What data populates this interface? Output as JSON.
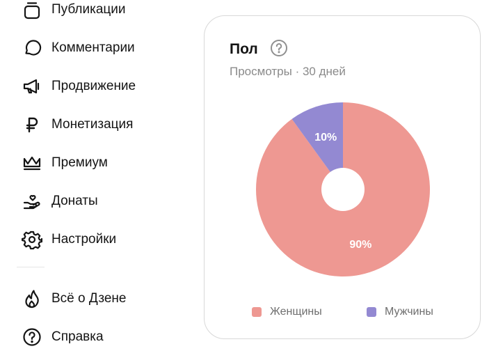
{
  "sidebar": {
    "items": [
      {
        "label": "Публикации",
        "icon": "publications-icon"
      },
      {
        "label": "Комментарии",
        "icon": "comment-icon"
      },
      {
        "label": "Продвижение",
        "icon": "megaphone-icon"
      },
      {
        "label": "Монетизация",
        "icon": "ruble-icon"
      },
      {
        "label": "Премиум",
        "icon": "crown-icon"
      },
      {
        "label": "Донаты",
        "icon": "donate-hand-icon"
      },
      {
        "label": "Настройки",
        "icon": "gear-icon"
      }
    ],
    "bottom_items": [
      {
        "label": "Всё о Дзене",
        "icon": "flame-icon"
      },
      {
        "label": "Справка",
        "icon": "question-circle-icon"
      }
    ]
  },
  "card": {
    "title": "Пол",
    "subtitle": "Просмотры · 30 дней",
    "help_icon": "help-icon"
  },
  "chart_data": {
    "type": "pie",
    "donut": true,
    "categories": [
      "Женщины",
      "Мужчины"
    ],
    "values": [
      90,
      10
    ],
    "labels": [
      "90%",
      "10%"
    ],
    "colors": [
      "#ee9892",
      "#9389d2"
    ],
    "legend": "bottom"
  }
}
